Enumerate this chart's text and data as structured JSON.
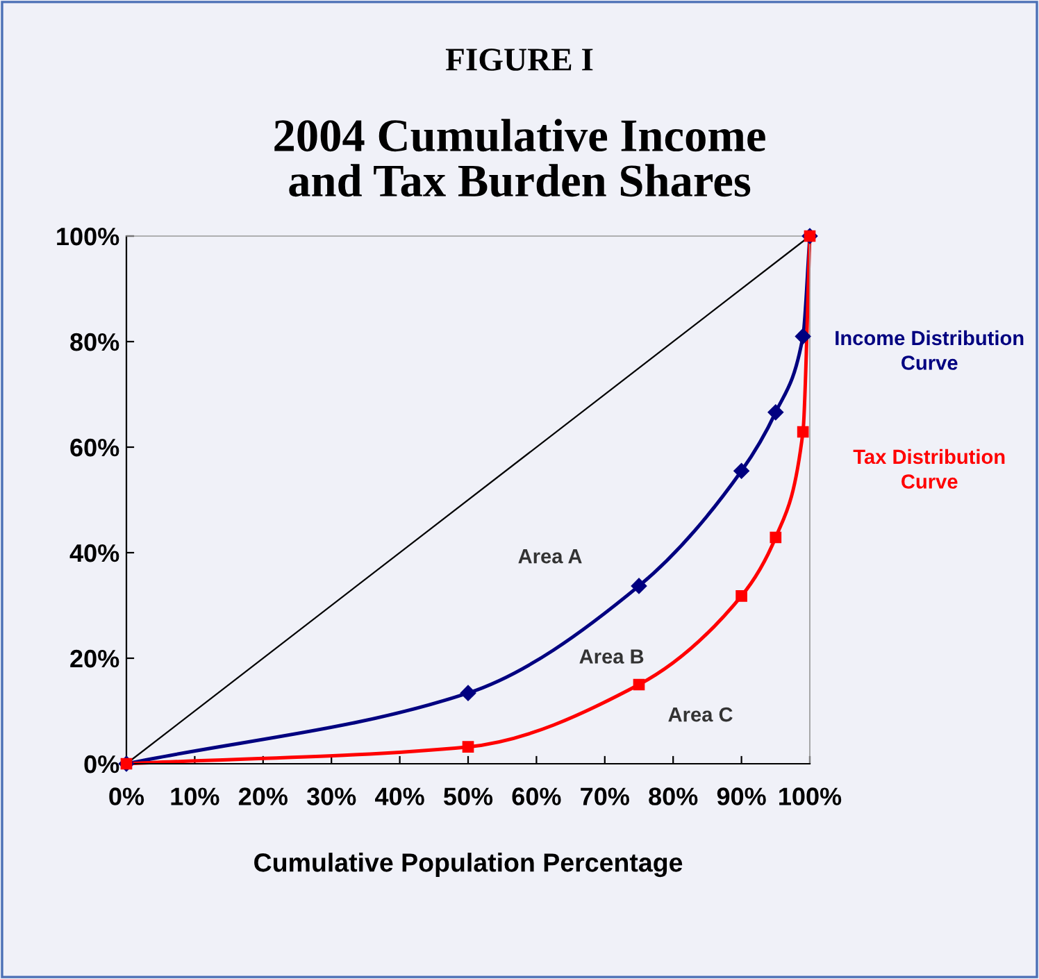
{
  "chart_data": {
    "type": "line",
    "subtitle": "FIGURE I",
    "title": "2004 Cumulative Income and Tax Burden Shares",
    "xlabel": "Cumulative Population Percentage",
    "series": [
      {
        "color": "#000000",
        "marker": "none",
        "x": [
          0,
          100
        ],
        "values": [
          0,
          100
        ]
      },
      {
        "name": "Income Distribution Curve",
        "color": "#000080",
        "marker": "diamond",
        "x": [
          0,
          50,
          75,
          90,
          95,
          99,
          100
        ],
        "values": [
          0,
          13.4,
          33.7,
          55.5,
          66.6,
          81,
          100
        ]
      },
      {
        "name": "Tax Distribution Curve",
        "color": "#ff0000",
        "marker": "square",
        "x": [
          0,
          50,
          75,
          90,
          95,
          99,
          100
        ],
        "values": [
          0,
          3.2,
          15,
          31.8,
          42.9,
          62.9,
          100
        ]
      }
    ],
    "annotations": [
      "Area A",
      "Area B",
      "Area C"
    ],
    "xlim": [
      0,
      100
    ],
    "ylim": [
      0,
      100
    ],
    "xticks": [
      {
        "value": 0,
        "label": "0%"
      },
      {
        "value": 10,
        "label": "10%"
      },
      {
        "value": 20,
        "label": "20%"
      },
      {
        "value": 30,
        "label": "30%"
      },
      {
        "value": 40,
        "label": "40%"
      },
      {
        "value": 50,
        "label": "50%"
      },
      {
        "value": 60,
        "label": "60%"
      },
      {
        "value": 70,
        "label": "70%"
      },
      {
        "value": 80,
        "label": "80%"
      },
      {
        "value": 90,
        "label": "90%"
      },
      {
        "value": 100,
        "label": "100%"
      }
    ],
    "yticks": [
      {
        "value": 0,
        "label": "0%"
      },
      {
        "value": 20,
        "label": "20%"
      },
      {
        "value": 40,
        "label": "40%"
      },
      {
        "value": 60,
        "label": "60%"
      },
      {
        "value": 80,
        "label": "80%"
      },
      {
        "value": 100,
        "label": "100%"
      }
    ],
    "grid": false,
    "legend": false,
    "line_style": "solid"
  }
}
